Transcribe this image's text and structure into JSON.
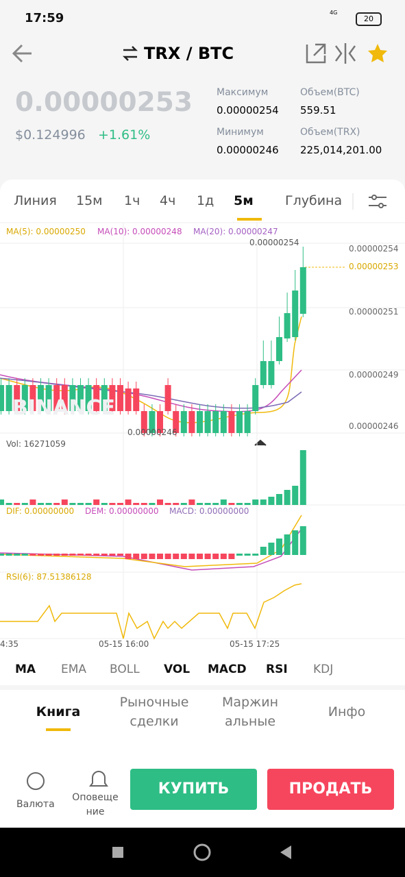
{
  "status": {
    "time": "17:59",
    "network": "4G",
    "battery": "20"
  },
  "header": {
    "pair": "TRX / BTC"
  },
  "price": {
    "last": "0.00000253",
    "usd": "$0.124996",
    "change": "+1.61%"
  },
  "stats": [
    {
      "label": "Максимум",
      "value": "0.00000254"
    },
    {
      "label": "Объем(BTC)",
      "value": "559.51"
    },
    {
      "label": "Минимум",
      "value": "0.00000246"
    },
    {
      "label": "Объем(TRX)",
      "value": "225,014,201.00"
    }
  ],
  "tabs": [
    "Линия",
    "15м",
    "1ч",
    "4ч",
    "1д",
    "5м",
    "Глубина"
  ],
  "chart": {
    "ma": [
      "MA(5): 0.00000250",
      "MA(10): 0.00000248",
      "MA(20): 0.00000247"
    ],
    "price_axis": [
      "0.00000254",
      "0.00000253",
      "0.00000251",
      "0.00000249",
      "0.00000246"
    ],
    "high": "0.00000254",
    "low": "0.00000246",
    "watermark": "BINANCE",
    "vol": "Vol: 16271059",
    "macd": [
      "DIF: 0.00000000",
      "DEM: 0.00000000",
      "MACD: 0.00000000"
    ],
    "rsi": "RSI(6): 87.51386128",
    "time_axis": [
      "4:35",
      "05-15 16:00",
      "05-15 17:25"
    ]
  },
  "indicators": [
    "MA",
    "EMA",
    "BOLL",
    "VOL",
    "MACD",
    "RSI",
    "KDJ"
  ],
  "bottom_tabs": [
    [
      "Книга"
    ],
    [
      "Рыночные",
      "сделки"
    ],
    [
      "Маржин",
      "альные"
    ],
    [
      "Инфо"
    ]
  ],
  "footer": {
    "currency": "Валюта",
    "alerts": [
      "Оповеще",
      "ние"
    ],
    "buy": "КУПИТЬ",
    "sell": "ПРОДАТЬ"
  }
}
